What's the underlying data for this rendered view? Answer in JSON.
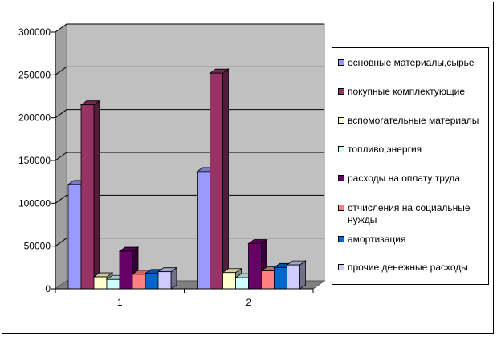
{
  "chart_data": {
    "type": "bar",
    "title": "",
    "xlabel": "",
    "ylabel": "",
    "categories": [
      "1",
      "2"
    ],
    "ylim": [
      0,
      300000
    ],
    "yticks": [
      "0",
      "50000",
      "100000",
      "150000",
      "200000",
      "250000",
      "300000"
    ],
    "grid": true,
    "legend_position": "right",
    "series": [
      {
        "name": "основные материалы,сырье",
        "values": [
          122000,
          137000
        ],
        "color": "#9999ff"
      },
      {
        "name": "покупные комплектующие",
        "values": [
          215000,
          252000
        ],
        "color": "#993366"
      },
      {
        "name": "вспомогательные материалы",
        "values": [
          14000,
          19000
        ],
        "color": "#ffffcc"
      },
      {
        "name": "топливо,энергия",
        "values": [
          11000,
          13000
        ],
        "color": "#ccffff"
      },
      {
        "name": "расходы на оплату труда",
        "values": [
          44000,
          53000
        ],
        "color": "#660066"
      },
      {
        "name": "отчисления на социальные нужды",
        "values": [
          17000,
          21000
        ],
        "color": "#ff8080"
      },
      {
        "name": "амортизация",
        "values": [
          18000,
          25000
        ],
        "color": "#0066cc"
      },
      {
        "name": "прочие денежные расходы",
        "values": [
          20000,
          28000
        ],
        "color": "#ccccff"
      }
    ]
  }
}
